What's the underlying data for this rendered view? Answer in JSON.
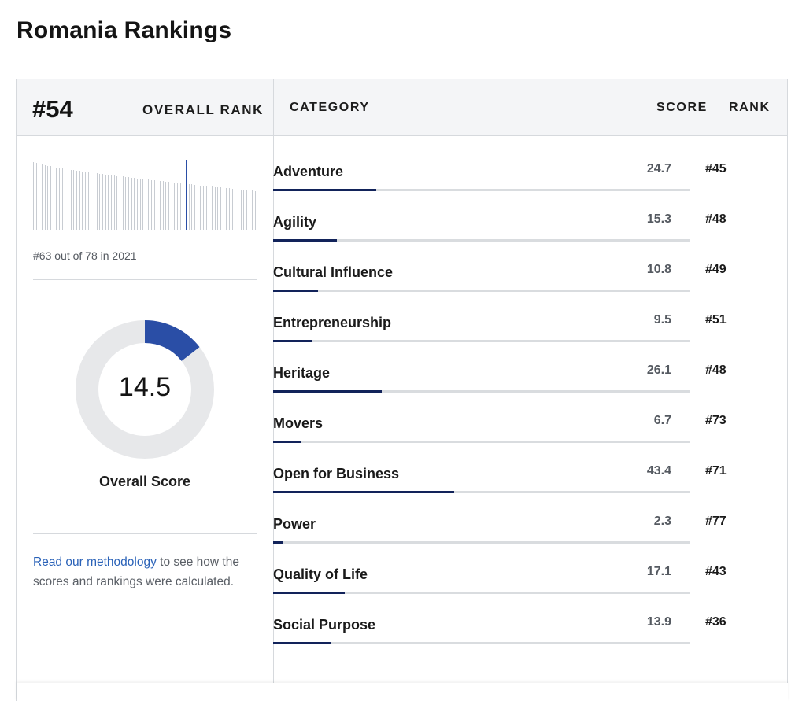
{
  "page": {
    "title": "Romania Rankings"
  },
  "overall": {
    "rank": "#54",
    "rank_label": "OVERALL RANK",
    "previous_rank_text": "#63 out of 78 in 2021",
    "score": "14.5",
    "score_value": 14.5,
    "score_label": "Overall Score",
    "methodology_link": "Read our methodology",
    "methodology_rest": " to see how the scores and rankings were calculated."
  },
  "table": {
    "headers": {
      "category": "CATEGORY",
      "score": "SCORE",
      "rank": "RANK"
    },
    "rows": [
      {
        "category": "Adventure",
        "score": "24.7",
        "rank": "#45",
        "value": 24.7
      },
      {
        "category": "Agility",
        "score": "15.3",
        "rank": "#48",
        "value": 15.3
      },
      {
        "category": "Cultural Influence",
        "score": "10.8",
        "rank": "#49",
        "value": 10.8
      },
      {
        "category": "Entrepreneurship",
        "score": "9.5",
        "rank": "#51",
        "value": 9.5
      },
      {
        "category": "Heritage",
        "score": "26.1",
        "rank": "#48",
        "value": 26.1
      },
      {
        "category": "Movers",
        "score": "6.7",
        "rank": "#73",
        "value": 6.7
      },
      {
        "category": "Open for Business",
        "score": "43.4",
        "rank": "#71",
        "value": 43.4
      },
      {
        "category": "Power",
        "score": "2.3",
        "rank": "#77",
        "value": 2.3
      },
      {
        "category": "Quality of Life",
        "score": "17.1",
        "rank": "#43",
        "value": 17.1
      },
      {
        "category": "Social Purpose",
        "score": "13.9",
        "rank": "#36",
        "value": 13.9
      }
    ]
  },
  "distribution": {
    "total_countries": 78,
    "highlight_rank": 54
  },
  "colors": {
    "donut_fill": "#2a4ea6",
    "donut_track": "#e7e8ea",
    "bar_fill": "#12235a",
    "link": "#2a62b8"
  }
}
